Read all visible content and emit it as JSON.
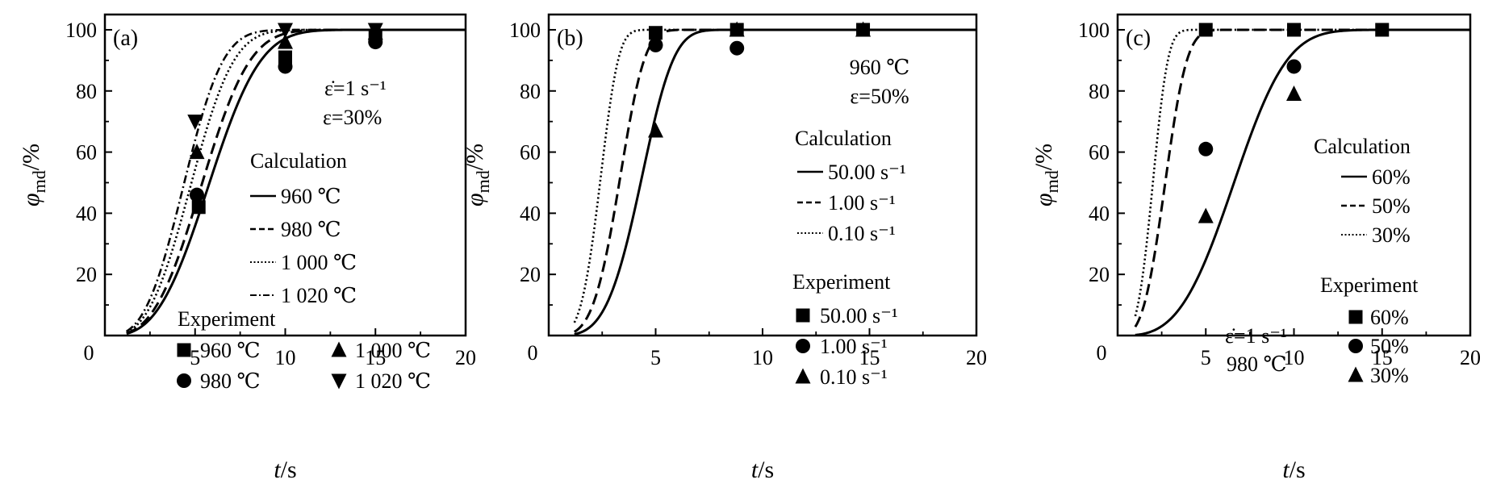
{
  "chart_data": [
    {
      "type": "line",
      "panel_label": "(a)",
      "xlabel": "t/s",
      "ylabel": "φmd/%",
      "xlim": [
        0,
        20
      ],
      "ylim": [
        0,
        105
      ],
      "xticks": [
        0,
        5,
        10,
        15,
        20
      ],
      "yticks": [
        20,
        40,
        60,
        80,
        100
      ],
      "x_tick_labels": [
        "0",
        "5",
        "10",
        "15",
        "20"
      ],
      "y_tick_labels": [
        "20",
        "40",
        "60",
        "80",
        "100"
      ],
      "conditions": [
        "ε̇=1 s⁻¹",
        "ε=30%"
      ],
      "calc_title": "Calculation",
      "exp_title": "Experiment",
      "calc_series": [
        {
          "name": "960 ℃",
          "style": "solid",
          "t50": 5.8,
          "k": 3.0,
          "x0": 1.2,
          "xmax": 20
        },
        {
          "name": "980 ℃",
          "style": "dashed",
          "t50": 5.4,
          "k": 3.0,
          "x0": 1.2,
          "xmax": 20
        },
        {
          "name": "1 000 ℃",
          "style": "dotted",
          "t50": 4.8,
          "k": 3.0,
          "x0": 1.2,
          "xmax": 20
        },
        {
          "name": "1 020 ℃",
          "style": "dashdot",
          "t50": 4.4,
          "k": 3.0,
          "x0": 1.2,
          "xmax": 20
        }
      ],
      "exp_series": [
        {
          "name": "960 ℃",
          "marker": "square",
          "points": [
            [
              5.2,
              42
            ],
            [
              10,
              91
            ],
            [
              15,
              98
            ]
          ]
        },
        {
          "name": "980 ℃",
          "marker": "circle",
          "points": [
            [
              5.1,
              46
            ],
            [
              10,
              88
            ],
            [
              15,
              96
            ]
          ]
        },
        {
          "name": "1 000 ℃",
          "marker": "triangle",
          "points": [
            [
              5.1,
              60
            ],
            [
              10,
              96
            ],
            [
              15,
              99
            ]
          ]
        },
        {
          "name": "1 020 ℃",
          "marker": "triangle-down",
          "points": [
            [
              5,
              70
            ],
            [
              10,
              100
            ],
            [
              15,
              100
            ]
          ]
        }
      ]
    },
    {
      "type": "line",
      "panel_label": "(b)",
      "xlabel": "t/s",
      "ylabel": "φmd/%",
      "xlim": [
        0,
        20
      ],
      "ylim": [
        0,
        105
      ],
      "xticks": [
        0,
        5,
        10,
        15,
        20
      ],
      "yticks": [
        20,
        40,
        60,
        80,
        100
      ],
      "x_tick_labels": [
        "0",
        "5",
        "10",
        "15",
        "20"
      ],
      "y_tick_labels": [
        "20",
        "40",
        "60",
        "80",
        "100"
      ],
      "conditions": [
        "960 ℃",
        "ε=50%"
      ],
      "calc_title": "Calculation",
      "exp_title": "Experiment",
      "calc_series": [
        {
          "name": "50.00 s⁻¹",
          "style": "solid",
          "t50": 4.3,
          "k": 4.0,
          "x0": 1.2,
          "xmax": 20
        },
        {
          "name": "1.00 s⁻¹",
          "style": "dashed",
          "t50": 3.3,
          "k": 4.0,
          "x0": 1.2,
          "xmax": 20
        },
        {
          "name": "0.10 s⁻¹",
          "style": "dotted",
          "t50": 2.4,
          "k": 4.0,
          "x0": 1.2,
          "xmax": 20
        }
      ],
      "exp_series": [
        {
          "name": "50.00 s⁻¹",
          "marker": "square",
          "points": [
            [
              5,
              99
            ],
            [
              8.8,
              100
            ],
            [
              14.7,
              100
            ]
          ]
        },
        {
          "name": "1.00 s⁻¹",
          "marker": "circle",
          "points": [
            [
              5,
              95
            ],
            [
              8.8,
              94
            ]
          ]
        },
        {
          "name": "0.10 s⁻¹",
          "marker": "triangle",
          "points": [
            [
              5,
              67
            ],
            [
              8.8,
              100
            ],
            [
              14.7,
              100
            ]
          ]
        }
      ]
    },
    {
      "type": "line",
      "panel_label": "(c)",
      "xlabel": "t/s",
      "ylabel": "φmd/%",
      "xlim": [
        0,
        20
      ],
      "ylim": [
        0,
        105
      ],
      "xticks": [
        0,
        5,
        10,
        15,
        20
      ],
      "yticks": [
        20,
        40,
        60,
        80,
        100
      ],
      "x_tick_labels": [
        "0",
        "5",
        "10",
        "15",
        "20"
      ],
      "y_tick_labels": [
        "20",
        "40",
        "60",
        "80",
        "100"
      ],
      "conditions": [
        "ε̇=1 s⁻¹",
        "980 ℃"
      ],
      "calc_title": "Calculation",
      "exp_title": "Experiment",
      "calc_series": [
        {
          "name": "60%",
          "style": "solid",
          "t50": 6.6,
          "k": 3.2,
          "x0": 1.0,
          "xmax": 20
        },
        {
          "name": "50%",
          "style": "dashed",
          "t50": 2.7,
          "k": 3.2,
          "x0": 1.0,
          "xmax": 20
        },
        {
          "name": "30%",
          "style": "dotted",
          "t50": 2.0,
          "k": 3.4,
          "x0": 1.0,
          "xmax": 20
        }
      ],
      "exp_series": [
        {
          "name": "60%",
          "marker": "square",
          "points": [
            [
              5,
              100
            ],
            [
              10,
              100
            ],
            [
              15,
              100
            ]
          ]
        },
        {
          "name": "50%",
          "marker": "circle",
          "points": [
            [
              5,
              61
            ],
            [
              10,
              88
            ]
          ]
        },
        {
          "name": "30%",
          "marker": "triangle",
          "points": [
            [
              5,
              39
            ],
            [
              10,
              79
            ]
          ]
        }
      ]
    }
  ]
}
